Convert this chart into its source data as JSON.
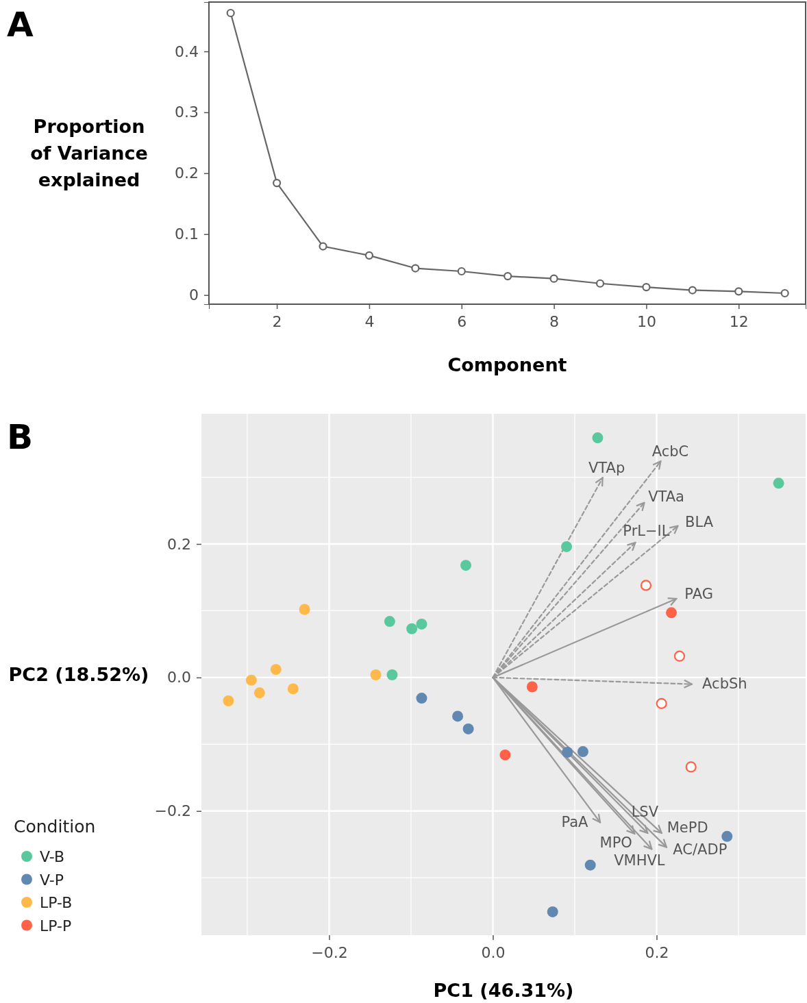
{
  "chart_data": [
    {
      "type": "line",
      "title": "A",
      "xlabel": "Component",
      "ylabel": "Proportion of Variance explained",
      "x": [
        1,
        2,
        3,
        4,
        5,
        6,
        7,
        8,
        9,
        10,
        11,
        12,
        13
      ],
      "series": [
        {
          "color": "#666666",
          "values": [
            0.463,
            0.184,
            0.08,
            0.065,
            0.044,
            0.039,
            0.031,
            0.027,
            0.019,
            0.013,
            0.008,
            0.006,
            0.003
          ]
        }
      ],
      "xlim": [
        0.53,
        13.45
      ],
      "xticks": [
        2,
        4,
        6,
        8,
        10,
        12
      ],
      "ylim": [
        -0.015,
        0.481
      ],
      "yticks": [
        0.0,
        0.1,
        0.2,
        0.3,
        0.4
      ],
      "marker": "circle-open",
      "line_style": "solid",
      "grid": false,
      "legend": false
    },
    {
      "type": "scatter",
      "title": "B",
      "xlabel": "PC1 (46.31%)",
      "ylabel": "PC2 (18.52%)",
      "legend_title": "Condition",
      "legend": "bottom left",
      "grid": true,
      "xlim": [
        -0.356,
        0.382
      ],
      "xticks": [
        {
          "value": -0.2,
          "label": "−0.2"
        },
        {
          "value": 0.0,
          "label": "0.0"
        },
        {
          "value": 0.2,
          "label": "0.2"
        }
      ],
      "ylim": [
        -0.386,
        0.395
      ],
      "yticks": [
        {
          "value": -0.2,
          "label": "−0.2"
        },
        {
          "value": 0.0,
          "label": "0.0"
        },
        {
          "value": 0.2,
          "label": "0.2"
        }
      ],
      "series": [
        {
          "name": "V-B",
          "color": "#59c99d",
          "marker": "circle",
          "x": [
            0.128,
            0.349,
            0.09,
            -0.033,
            -0.126,
            -0.099,
            -0.087,
            -0.123
          ],
          "values": [
            0.359,
            0.291,
            0.196,
            0.168,
            0.084,
            0.073,
            0.08,
            0.004
          ]
        },
        {
          "name": "V-P",
          "color": "#6088b0",
          "marker": "circle",
          "x": [
            -0.087,
            -0.043,
            -0.03,
            0.091,
            0.11,
            0.286,
            0.119,
            0.073
          ],
          "values": [
            -0.031,
            -0.058,
            -0.077,
            -0.112,
            -0.111,
            -0.238,
            -0.281,
            -0.351
          ]
        },
        {
          "name": "LP-B",
          "color": "#ffb94a",
          "marker": "circle",
          "x": [
            -0.23,
            -0.265,
            -0.295,
            -0.285,
            -0.244,
            -0.323,
            -0.143
          ],
          "values": [
            0.102,
            0.012,
            -0.004,
            -0.023,
            -0.017,
            -0.035,
            0.004
          ]
        },
        {
          "name": "LP-P",
          "color": "#ff6248",
          "marker": "circle",
          "x": [
            0.218,
            0.048,
            0.015
          ],
          "values": [
            0.097,
            -0.014,
            -0.116
          ]
        },
        {
          "color": "#ff6248",
          "marker": "circle-open",
          "x": [
            0.187,
            0.228,
            0.206,
            0.242
          ],
          "values": [
            0.138,
            0.032,
            -0.039,
            -0.134
          ]
        },
        {
          "name": "VTAp",
          "type": "line",
          "color": "#999999",
          "line_style": "dashed",
          "marker": "none",
          "x": [
            0,
            0.134
          ],
          "values": [
            0,
            0.299
          ]
        },
        {
          "name": "AcbC",
          "type": "line",
          "color": "#999999",
          "line_style": "dashed",
          "marker": "none",
          "x": [
            0,
            0.205
          ],
          "values": [
            0,
            0.324
          ]
        },
        {
          "name": "VTAa",
          "type": "line",
          "color": "#999999",
          "line_style": "dashed",
          "marker": "none",
          "x": [
            0,
            0.185
          ],
          "values": [
            0,
            0.262
          ]
        },
        {
          "name": "PrL−IL",
          "type": "line",
          "color": "#999999",
          "line_style": "dashed",
          "marker": "none",
          "x": [
            0,
            0.174
          ],
          "values": [
            0,
            0.202
          ]
        },
        {
          "name": "BLA",
          "type": "line",
          "color": "#999999",
          "line_style": "dashed",
          "marker": "none",
          "x": [
            0,
            0.226
          ],
          "values": [
            0,
            0.227
          ]
        },
        {
          "name": "PAG",
          "type": "line",
          "color": "#999999",
          "line_style": "solid",
          "marker": "none",
          "x": [
            0,
            0.224
          ],
          "values": [
            0,
            0.118
          ]
        },
        {
          "name": "AcbSh",
          "type": "line",
          "color": "#999999",
          "line_style": "dashed",
          "marker": "none",
          "x": [
            0,
            0.243
          ],
          "values": [
            0,
            -0.01
          ]
        },
        {
          "name": "PaA",
          "type": "line",
          "color": "#999999",
          "line_style": "solid",
          "marker": "none",
          "x": [
            0,
            0.131
          ],
          "values": [
            0,
            -0.217
          ]
        },
        {
          "name": "MPO",
          "type": "line",
          "color": "#999999",
          "line_style": "solid",
          "marker": "none",
          "x": [
            0,
            0.173
          ],
          "values": [
            0,
            -0.234
          ]
        },
        {
          "name": "LSV",
          "type": "line",
          "color": "#999999",
          "line_style": "solid",
          "marker": "none",
          "x": [
            0,
            0.189
          ],
          "values": [
            0,
            -0.233
          ]
        },
        {
          "name": "MePD",
          "type": "line",
          "color": "#999999",
          "line_style": "solid",
          "marker": "none",
          "x": [
            0,
            0.206
          ],
          "values": [
            0,
            -0.233
          ]
        },
        {
          "name": "VMHVL",
          "type": "line",
          "color": "#999999",
          "line_style": "solid",
          "marker": "none",
          "x": [
            0,
            0.194
          ],
          "values": [
            0,
            -0.257
          ]
        },
        {
          "name": "AC/ADP",
          "type": "line",
          "color": "#999999",
          "line_style": "solid",
          "marker": "none",
          "x": [
            0,
            0.212
          ],
          "values": [
            0,
            -0.254
          ]
        }
      ]
    }
  ]
}
